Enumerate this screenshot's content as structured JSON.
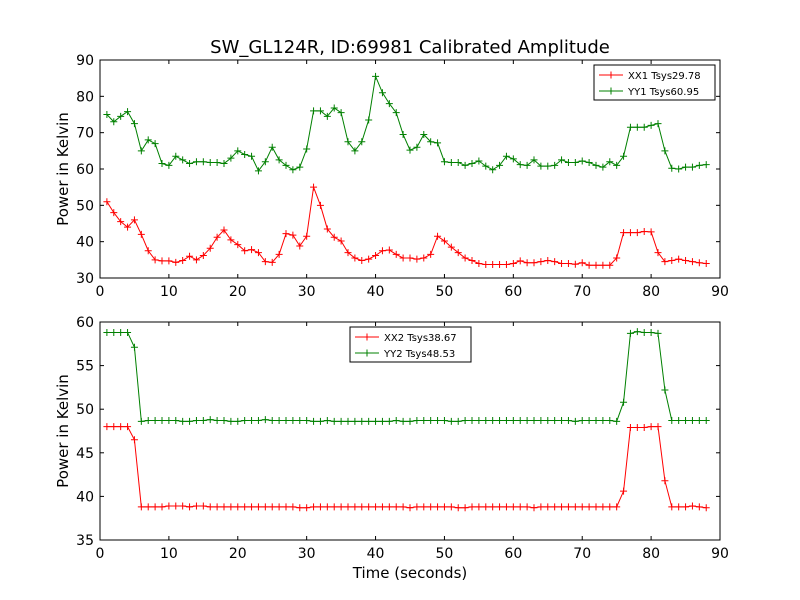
{
  "chart_data": [
    {
      "type": "line",
      "title": "SW_GL124R, ID:69981 Calibrated Amplitude",
      "xlabel": "",
      "ylabel": "Power in Kelvin",
      "xlim": [
        0,
        90
      ],
      "ylim": [
        30,
        90
      ],
      "xticks": [
        "0",
        "10",
        "20",
        "30",
        "40",
        "50",
        "60",
        "70",
        "80",
        "90"
      ],
      "yticks": [
        "30",
        "40",
        "50",
        "60",
        "70",
        "80",
        "90"
      ],
      "grid": false,
      "legend_position": "top-right",
      "x": [
        1,
        2,
        3,
        4,
        5,
        6,
        7,
        8,
        9,
        10,
        11,
        12,
        13,
        14,
        15,
        16,
        17,
        18,
        19,
        20,
        21,
        22,
        23,
        24,
        25,
        26,
        27,
        28,
        29,
        30,
        31,
        32,
        33,
        34,
        35,
        36,
        37,
        38,
        39,
        40,
        41,
        42,
        43,
        44,
        45,
        46,
        47,
        48,
        49,
        50,
        51,
        52,
        53,
        54,
        55,
        56,
        57,
        58,
        59,
        60,
        61,
        62,
        63,
        64,
        65,
        66,
        67,
        68,
        69,
        70,
        71,
        72,
        73,
        74,
        75,
        76,
        77,
        78,
        79,
        80,
        81,
        82,
        83,
        84,
        85,
        86,
        87,
        88
      ],
      "series": [
        {
          "name": "XX1 Tsys29.78",
          "color": "#ff0000",
          "values": [
            51,
            48,
            45.5,
            44,
            46,
            42,
            37.5,
            35,
            34.7,
            34.7,
            34.3,
            34.8,
            36,
            35,
            36.2,
            38.2,
            41.2,
            43.2,
            40.5,
            39.2,
            37.5,
            37.8,
            37,
            34.5,
            34.3,
            36.5,
            42.2,
            41.8,
            38.8,
            41.5,
            55,
            50,
            43.5,
            41.2,
            40.2,
            37,
            35.5,
            34.8,
            35.2,
            36.2,
            37.5,
            37.7,
            36.5,
            35.5,
            35.5,
            35.2,
            35.5,
            36.5,
            41.5,
            40.2,
            38.5,
            37,
            35.5,
            34.8,
            34,
            33.7,
            33.7,
            33.7,
            33.7,
            34,
            34.7,
            34.2,
            34.2,
            34.5,
            34.8,
            34.5,
            34,
            34,
            33.8,
            34.2,
            33.5,
            33.5,
            33.5,
            33.5,
            35.5,
            42.5,
            42.5,
            42.5,
            42.8,
            42.7,
            37,
            34.5,
            34.8,
            35.2,
            34.8,
            34.5,
            34.2,
            34
          ]
        },
        {
          "name": "YY1 Tsys60.95",
          "color": "#008000",
          "values": [
            75,
            73,
            74.5,
            75.8,
            72.5,
            65,
            68,
            67,
            61.5,
            61,
            63.5,
            62.5,
            61.5,
            62,
            62,
            61.8,
            61.8,
            61.5,
            63,
            65,
            64,
            63.5,
            59.5,
            62,
            66,
            62.5,
            61,
            59.8,
            60.5,
            65.5,
            76,
            76,
            74.5,
            76.8,
            75.5,
            67.5,
            65,
            67.5,
            73.5,
            85.5,
            81,
            78,
            75.5,
            69.5,
            65.2,
            66,
            69.5,
            67.5,
            67.2,
            62,
            61.8,
            61.8,
            61,
            61.5,
            62.2,
            60.8,
            59.8,
            61,
            63.5,
            62.8,
            61.2,
            61,
            62.5,
            60.8,
            60.8,
            61,
            62.5,
            61.8,
            61.8,
            62.2,
            61.8,
            61,
            60.5,
            62,
            61,
            63.5,
            71.5,
            71.5,
            71.5,
            72,
            72.5,
            65,
            60.2,
            60,
            60.5,
            60.5,
            61,
            61.2
          ]
        }
      ]
    },
    {
      "type": "line",
      "title": "",
      "xlabel": "Time (seconds)",
      "ylabel": "Power in Kelvin",
      "xlim": [
        0,
        90
      ],
      "ylim": [
        35,
        60
      ],
      "xticks": [
        "0",
        "10",
        "20",
        "30",
        "40",
        "50",
        "60",
        "70",
        "80",
        "90"
      ],
      "yticks": [
        "35",
        "40",
        "45",
        "50",
        "55",
        "60"
      ],
      "grid": false,
      "legend_position": "top-center",
      "x": [
        1,
        2,
        3,
        4,
        5,
        6,
        7,
        8,
        9,
        10,
        11,
        12,
        13,
        14,
        15,
        16,
        17,
        18,
        19,
        20,
        21,
        22,
        23,
        24,
        25,
        26,
        27,
        28,
        29,
        30,
        31,
        32,
        33,
        34,
        35,
        36,
        37,
        38,
        39,
        40,
        41,
        42,
        43,
        44,
        45,
        46,
        47,
        48,
        49,
        50,
        51,
        52,
        53,
        54,
        55,
        56,
        57,
        58,
        59,
        60,
        61,
        62,
        63,
        64,
        65,
        66,
        67,
        68,
        69,
        70,
        71,
        72,
        73,
        74,
        75,
        76,
        77,
        78,
        79,
        80,
        81,
        82,
        83,
        84,
        85,
        86,
        87,
        88
      ],
      "series": [
        {
          "name": "XX2 Tsys38.67",
          "color": "#ff0000",
          "values": [
            48,
            48,
            48,
            48,
            46.5,
            38.8,
            38.8,
            38.8,
            38.8,
            38.9,
            38.9,
            38.9,
            38.8,
            38.9,
            38.9,
            38.8,
            38.8,
            38.8,
            38.8,
            38.8,
            38.8,
            38.8,
            38.8,
            38.8,
            38.8,
            38.8,
            38.8,
            38.8,
            38.7,
            38.7,
            38.8,
            38.8,
            38.8,
            38.8,
            38.8,
            38.8,
            38.8,
            38.8,
            38.8,
            38.8,
            38.8,
            38.8,
            38.8,
            38.8,
            38.7,
            38.8,
            38.8,
            38.8,
            38.8,
            38.8,
            38.8,
            38.7,
            38.7,
            38.8,
            38.8,
            38.8,
            38.8,
            38.8,
            38.8,
            38.8,
            38.8,
            38.8,
            38.7,
            38.8,
            38.8,
            38.8,
            38.8,
            38.8,
            38.8,
            38.8,
            38.8,
            38.8,
            38.8,
            38.8,
            38.8,
            40.6,
            47.9,
            47.9,
            47.9,
            48,
            48,
            41.8,
            38.8,
            38.8,
            38.8,
            38.9,
            38.8,
            38.7
          ]
        },
        {
          "name": "YY2 Tsys48.53",
          "color": "#008000",
          "values": [
            58.8,
            58.8,
            58.8,
            58.8,
            57.1,
            48.6,
            48.7,
            48.7,
            48.7,
            48.7,
            48.7,
            48.6,
            48.6,
            48.7,
            48.7,
            48.8,
            48.7,
            48.7,
            48.6,
            48.6,
            48.7,
            48.7,
            48.7,
            48.8,
            48.7,
            48.7,
            48.7,
            48.7,
            48.7,
            48.7,
            48.6,
            48.6,
            48.7,
            48.6,
            48.6,
            48.6,
            48.6,
            48.6,
            48.6,
            48.6,
            48.6,
            48.6,
            48.7,
            48.6,
            48.6,
            48.7,
            48.7,
            48.7,
            48.7,
            48.7,
            48.6,
            48.6,
            48.7,
            48.7,
            48.7,
            48.7,
            48.7,
            48.7,
            48.7,
            48.7,
            48.7,
            48.7,
            48.7,
            48.7,
            48.7,
            48.7,
            48.7,
            48.7,
            48.6,
            48.7,
            48.7,
            48.7,
            48.7,
            48.7,
            48.6,
            50.8,
            58.7,
            58.9,
            58.8,
            58.8,
            58.7,
            52.2,
            48.7,
            48.7,
            48.7,
            48.7,
            48.7,
            48.7
          ]
        }
      ]
    }
  ]
}
